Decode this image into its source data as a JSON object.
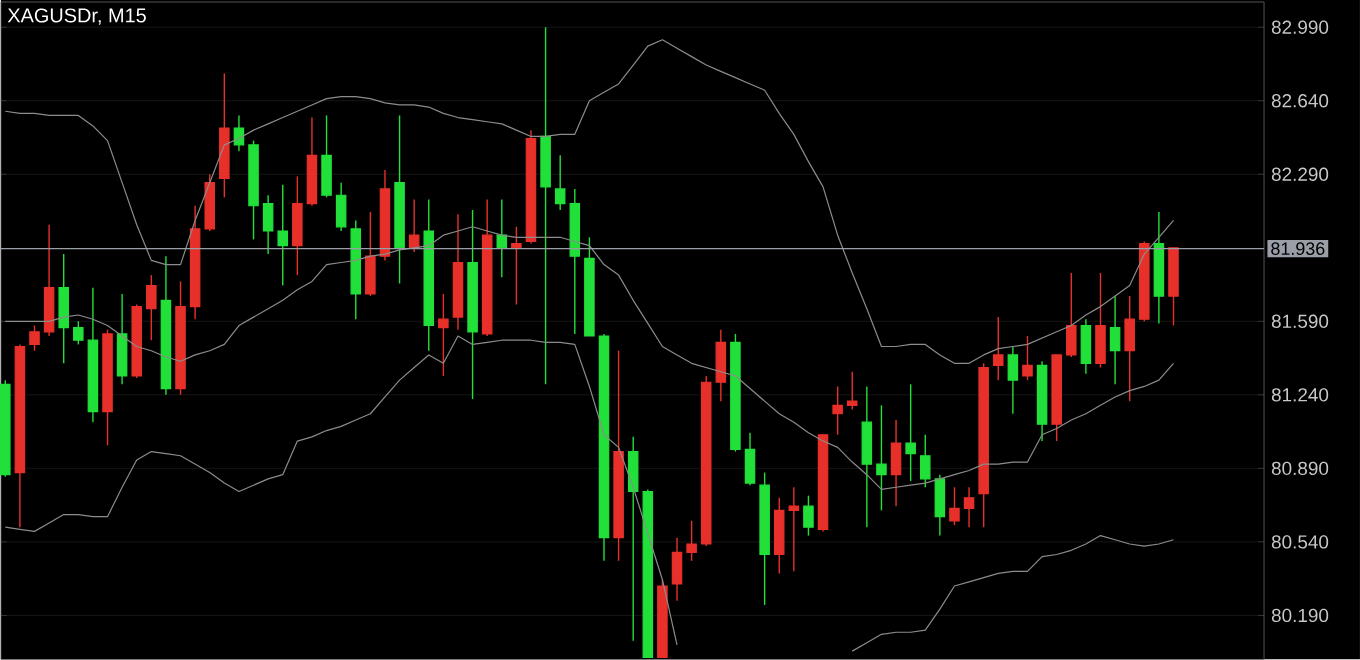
{
  "chart_data": {
    "type": "candlestick",
    "title": "XAGUSDr, M15",
    "categories": [
      null,
      null,
      null,
      null,
      null,
      null,
      null,
      null,
      null,
      null,
      null,
      null,
      null,
      null,
      null,
      null,
      null,
      null,
      null,
      null,
      null,
      null,
      null,
      null,
      null,
      null,
      null,
      null,
      null,
      null,
      null,
      null,
      null,
      null,
      null,
      null,
      null,
      null,
      null,
      null,
      null,
      null,
      null,
      null,
      null,
      null,
      null,
      null,
      null,
      null,
      null,
      null,
      null,
      null,
      null,
      null,
      null,
      null,
      null,
      null,
      null,
      null,
      null,
      null,
      null,
      null,
      null,
      null,
      null,
      null,
      null,
      null,
      null,
      null,
      null,
      null,
      null,
      null,
      null,
      null,
      null
    ],
    "ohlc": [
      [
        81.29,
        81.31,
        80.85,
        80.86
      ],
      [
        80.87,
        81.48,
        80.61,
        81.47
      ],
      [
        81.48,
        81.57,
        81.45,
        81.54
      ],
      [
        81.54,
        82.05,
        81.52,
        81.75
      ],
      [
        81.75,
        81.91,
        81.39,
        81.56
      ],
      [
        81.56,
        81.59,
        81.48,
        81.5
      ],
      [
        81.5,
        81.75,
        81.11,
        81.16
      ],
      [
        81.16,
        81.55,
        81.0,
        81.53
      ],
      [
        81.53,
        81.72,
        81.29,
        81.33
      ],
      [
        81.33,
        81.67,
        81.32,
        81.66
      ],
      [
        81.65,
        81.81,
        81.5,
        81.76
      ],
      [
        81.69,
        81.9,
        81.24,
        81.27
      ],
      [
        81.27,
        81.78,
        81.24,
        81.66
      ],
      [
        81.66,
        82.14,
        81.6,
        82.03
      ],
      [
        82.03,
        82.29,
        82.02,
        82.25
      ],
      [
        82.27,
        82.77,
        82.18,
        82.51
      ],
      [
        82.51,
        82.57,
        82.4,
        82.43
      ],
      [
        82.43,
        82.45,
        81.98,
        82.14
      ],
      [
        82.15,
        82.19,
        81.91,
        82.02
      ],
      [
        82.02,
        82.24,
        81.76,
        81.95
      ],
      [
        81.95,
        82.28,
        81.81,
        82.15
      ],
      [
        82.15,
        82.56,
        82.14,
        82.38
      ],
      [
        82.38,
        82.57,
        82.18,
        82.19
      ],
      [
        82.19,
        82.25,
        82.02,
        82.04
      ],
      [
        82.03,
        82.07,
        81.6,
        81.72
      ],
      [
        81.72,
        82.11,
        81.71,
        81.9
      ],
      [
        81.9,
        82.31,
        81.88,
        82.22
      ],
      [
        82.25,
        82.57,
        81.77,
        81.94
      ],
      [
        81.94,
        82.17,
        81.92,
        82.0
      ],
      [
        82.02,
        82.17,
        81.45,
        81.57
      ],
      [
        81.56,
        81.72,
        81.33,
        81.6
      ],
      [
        81.61,
        82.1,
        81.55,
        81.87
      ],
      [
        81.87,
        82.12,
        81.22,
        81.54
      ],
      [
        81.53,
        82.17,
        81.52,
        82.0
      ],
      [
        82.0,
        82.17,
        81.8,
        81.94
      ],
      [
        81.94,
        82.04,
        81.67,
        81.96
      ],
      [
        81.97,
        82.5,
        81.96,
        82.46
      ],
      [
        82.47,
        82.99,
        81.29,
        82.23
      ],
      [
        82.22,
        82.38,
        82.12,
        82.15
      ],
      [
        82.15,
        82.22,
        81.53,
        81.9
      ],
      [
        81.89,
        81.99,
        81.52,
        81.52
      ],
      [
        81.52,
        81.53,
        80.45,
        80.56
      ],
      [
        80.56,
        81.45,
        80.45,
        80.97
      ],
      [
        80.97,
        81.04,
        80.07,
        80.78
      ],
      [
        80.78,
        80.79,
        79.99,
        79.99
      ],
      [
        79.99,
        80.36,
        79.99,
        80.33
      ],
      [
        80.34,
        80.56,
        80.26,
        80.49
      ],
      [
        80.49,
        80.64,
        80.45,
        80.53
      ],
      [
        80.53,
        81.33,
        80.52,
        81.3
      ],
      [
        81.3,
        81.55,
        81.21,
        81.49
      ],
      [
        81.49,
        81.53,
        80.97,
        80.98
      ],
      [
        80.98,
        81.06,
        80.81,
        80.82
      ],
      [
        80.81,
        80.87,
        80.24,
        80.48
      ],
      [
        80.48,
        80.75,
        80.39,
        80.69
      ],
      [
        80.69,
        80.8,
        80.4,
        80.71
      ],
      [
        80.71,
        80.76,
        80.57,
        80.61
      ],
      [
        80.6,
        81.05,
        80.59,
        81.05
      ],
      [
        81.15,
        81.28,
        81.05,
        81.19
      ],
      [
        81.19,
        81.35,
        81.17,
        81.21
      ],
      [
        81.11,
        81.28,
        80.61,
        80.91
      ],
      [
        80.91,
        81.19,
        80.69,
        80.86
      ],
      [
        80.86,
        81.12,
        80.71,
        81.01
      ],
      [
        81.01,
        81.29,
        80.83,
        80.96
      ],
      [
        80.95,
        81.05,
        80.8,
        80.84
      ],
      [
        80.84,
        80.86,
        80.57,
        80.66
      ],
      [
        80.64,
        80.8,
        80.62,
        80.7
      ],
      [
        80.7,
        80.8,
        80.61,
        80.75
      ],
      [
        80.77,
        81.39,
        80.61,
        81.37
      ],
      [
        81.38,
        81.61,
        81.31,
        81.43
      ],
      [
        81.43,
        81.47,
        81.15,
        81.31
      ],
      [
        81.33,
        81.52,
        81.31,
        81.38
      ],
      [
        81.38,
        81.4,
        81.02,
        81.1
      ],
      [
        81.1,
        81.43,
        81.02,
        81.43
      ],
      [
        81.43,
        81.82,
        81.42,
        81.57
      ],
      [
        81.57,
        81.6,
        81.34,
        81.39
      ],
      [
        81.39,
        81.82,
        81.37,
        81.57
      ],
      [
        81.56,
        81.71,
        81.29,
        81.45
      ],
      [
        81.45,
        81.71,
        81.21,
        81.6
      ],
      [
        81.6,
        81.97,
        81.59,
        81.96
      ],
      [
        81.96,
        82.11,
        81.58,
        81.71
      ],
      [
        81.71,
        81.94,
        81.57,
        81.94
      ]
    ],
    "colors": [
      "#22e03a",
      "#e8302a",
      "#e8302a",
      "#e8302a",
      "#22e03a",
      "#22e03a",
      "#22e03a",
      "#e8302a",
      "#22e03a",
      "#e8302a",
      "#e8302a",
      "#22e03a",
      "#e8302a",
      "#e8302a",
      "#e8302a",
      "#e8302a",
      "#22e03a",
      "#22e03a",
      "#22e03a",
      "#22e03a",
      "#e8302a",
      "#e8302a",
      "#22e03a",
      "#22e03a",
      "#22e03a",
      "#e8302a",
      "#e8302a",
      "#22e03a",
      "#e8302a",
      "#22e03a",
      "#e8302a",
      "#e8302a",
      "#22e03a",
      "#e8302a",
      "#22e03a",
      "#e8302a",
      "#e8302a",
      "#22e03a",
      "#22e03a",
      "#22e03a",
      "#22e03a",
      "#22e03a",
      "#e8302a",
      "#22e03a",
      "#22e03a",
      "#e8302a",
      "#e8302a",
      "#e8302a",
      "#e8302a",
      "#e8302a",
      "#22e03a",
      "#22e03a",
      "#22e03a",
      "#e8302a",
      "#e8302a",
      "#22e03a",
      "#e8302a",
      "#e8302a",
      "#e8302a",
      "#22e03a",
      "#22e03a",
      "#e8302a",
      "#22e03a",
      "#22e03a",
      "#22e03a",
      "#e8302a",
      "#e8302a",
      "#e8302a",
      "#e8302a",
      "#22e03a",
      "#e8302a",
      "#22e03a",
      "#e8302a",
      "#e8302a",
      "#22e03a",
      "#e8302a",
      "#22e03a",
      "#e8302a",
      "#e8302a",
      "#22e03a",
      "#e8302a"
    ],
    "ylim": [
      79.98,
      83.11
    ],
    "yticks": [
      {
        "value": 80.19,
        "label": "80.190"
      },
      {
        "value": 80.54,
        "label": "80.540"
      },
      {
        "value": 80.89,
        "label": "80.890"
      },
      {
        "value": 81.24,
        "label": "81.240"
      },
      {
        "value": 81.59,
        "label": "81.590"
      },
      {
        "value": 82.29,
        "label": "82.290"
      },
      {
        "value": 82.64,
        "label": "82.640"
      },
      {
        "value": 82.99,
        "label": "82.990"
      }
    ],
    "grid": "y",
    "tick_labels": "y",
    "ref_lines": [
      {
        "axis": "y",
        "value": 81.936,
        "label": "81.936",
        "color": "#9a9ea6"
      }
    ],
    "series": [
      {
        "type": "line",
        "color": "#8c8c8c",
        "values": [
          82.59,
          82.58,
          82.58,
          82.57,
          82.57,
          82.57,
          82.52,
          82.45,
          82.25,
          82.05,
          81.88,
          81.86,
          81.86,
          82.07,
          82.25,
          82.43,
          82.46,
          82.5,
          82.53,
          82.56,
          82.59,
          82.62,
          82.65,
          82.66,
          82.66,
          82.65,
          82.63,
          82.62,
          82.62,
          82.61,
          82.58,
          82.56,
          82.55,
          82.54,
          82.53,
          82.5,
          82.47,
          82.47,
          82.48,
          82.48,
          82.64,
          82.68,
          82.72,
          82.81,
          82.9,
          82.93,
          82.89,
          82.85,
          82.81,
          82.78,
          82.75,
          82.72,
          82.69,
          82.58,
          82.48,
          82.35,
          82.23,
          82.0,
          81.82,
          81.65,
          81.47,
          81.47,
          81.48,
          81.48,
          81.43,
          81.39,
          81.39,
          81.43,
          81.46,
          81.47,
          81.48,
          81.51,
          81.54,
          81.57,
          81.62,
          81.66,
          81.71,
          81.76,
          81.91,
          81.99,
          82.07
        ]
      },
      {
        "type": "line",
        "color": "#8c8c8c",
        "values": [
          81.59,
          81.59,
          81.59,
          81.59,
          81.61,
          81.62,
          81.6,
          81.57,
          81.52,
          81.47,
          81.45,
          81.42,
          81.4,
          81.43,
          81.45,
          81.48,
          81.57,
          81.61,
          81.65,
          81.69,
          81.74,
          81.78,
          81.86,
          81.87,
          81.88,
          81.9,
          81.91,
          81.93,
          81.94,
          81.95,
          82.0,
          82.02,
          82.04,
          82.02,
          82.0,
          81.99,
          81.99,
          81.99,
          81.99,
          81.97,
          81.95,
          81.86,
          81.81,
          81.69,
          81.58,
          81.47,
          81.43,
          81.39,
          81.37,
          81.35,
          81.33,
          81.27,
          81.21,
          81.15,
          81.11,
          81.06,
          81.02,
          80.99,
          80.92,
          80.86,
          80.79,
          80.8,
          80.81,
          80.82,
          80.84,
          80.86,
          80.88,
          80.91,
          80.91,
          80.92,
          80.92,
          81.05,
          81.08,
          81.12,
          81.15,
          81.19,
          81.23,
          81.26,
          81.28,
          81.31,
          81.39
        ]
      },
      {
        "type": "line",
        "color": "#8c8c8c",
        "values": [
          80.61,
          80.6,
          80.59,
          80.63,
          80.67,
          80.67,
          80.66,
          80.66,
          80.8,
          80.93,
          80.97,
          80.96,
          80.95,
          80.91,
          80.87,
          80.82,
          80.78,
          80.81,
          80.84,
          80.86,
          81.02,
          81.04,
          81.07,
          81.09,
          81.12,
          81.15,
          81.23,
          81.31,
          81.37,
          81.43,
          81.39,
          81.52,
          81.48,
          81.49,
          81.5,
          81.5,
          81.5,
          81.49,
          81.49,
          81.48,
          81.28,
          81.05,
          80.99,
          80.8,
          80.58,
          80.36,
          80.05,
          null,
          null,
          null,
          null,
          null,
          null,
          null,
          null,
          null,
          null,
          null,
          80.02,
          80.06,
          80.1,
          80.11,
          80.11,
          80.12,
          80.22,
          80.33,
          80.35,
          80.37,
          80.39,
          80.4,
          80.4,
          80.47,
          80.48,
          80.5,
          80.53,
          80.57,
          80.55,
          80.53,
          80.52,
          80.53,
          80.55
        ]
      }
    ]
  }
}
